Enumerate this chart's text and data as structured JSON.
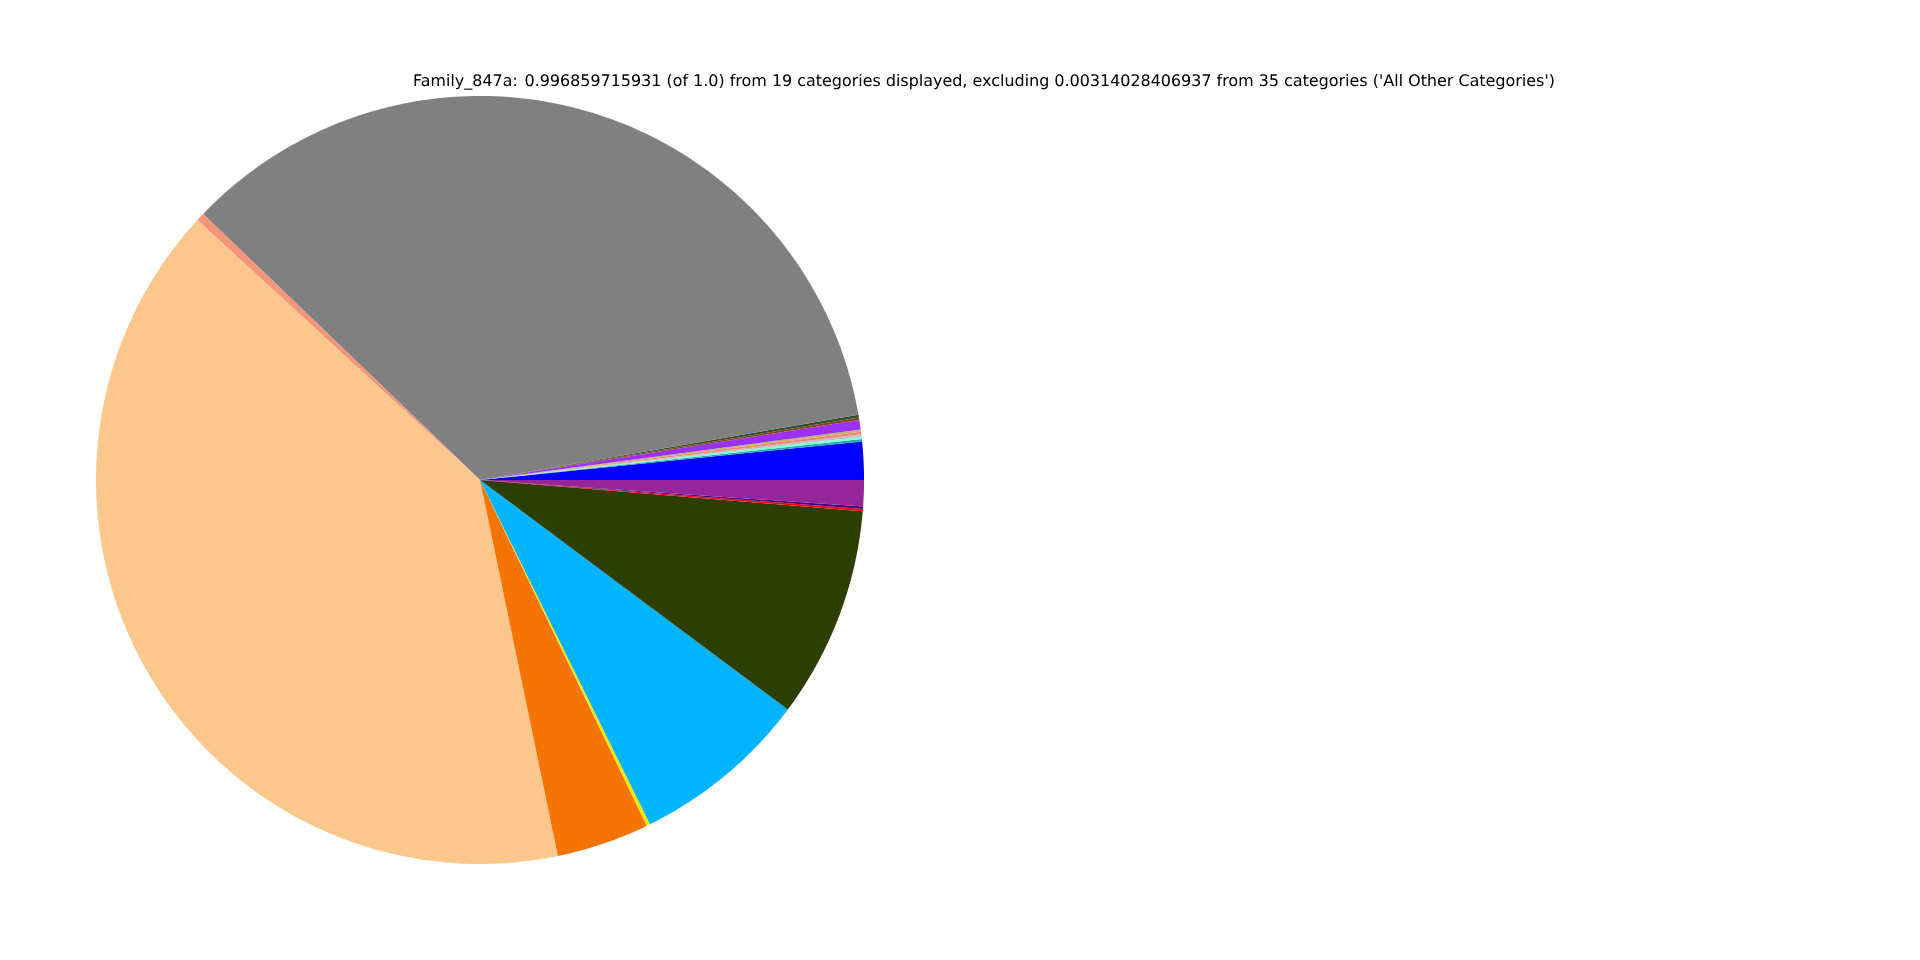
{
  "chart_data": {
    "type": "pie",
    "title": "Family_847a: 0.996859715931 (of 1.0) from 19 categories displayed, excluding 0.00314028406937 from 35 categories ('All Other Categories')",
    "categories": [
      null,
      null,
      null,
      null,
      null,
      null,
      null,
      null,
      null,
      null,
      null,
      null,
      null,
      null,
      null,
      null,
      null,
      null,
      null
    ],
    "values": [
      1.6,
      0.1,
      0.1,
      0.1,
      0.1,
      0.1,
      0.4,
      0.1,
      0.12,
      35.1,
      0.35,
      40.08,
      3.9,
      0.15,
      7.5,
      8.9,
      0.1,
      0.1,
      1.1
    ],
    "colors": [
      "#0000ff",
      "#20b2aa",
      "#7fffd4",
      "#c0c0c0",
      "#fa8072",
      "#bdb76b",
      "#9b30ff",
      "#8b4513",
      "#2f4f2f",
      "#808080",
      "#f4957a",
      "#fcc78c",
      "#f47404",
      "#ffe600",
      "#00b4ff",
      "#2c3f00",
      "#ff0000",
      "#4b0082",
      "#952599"
    ]
  }
}
